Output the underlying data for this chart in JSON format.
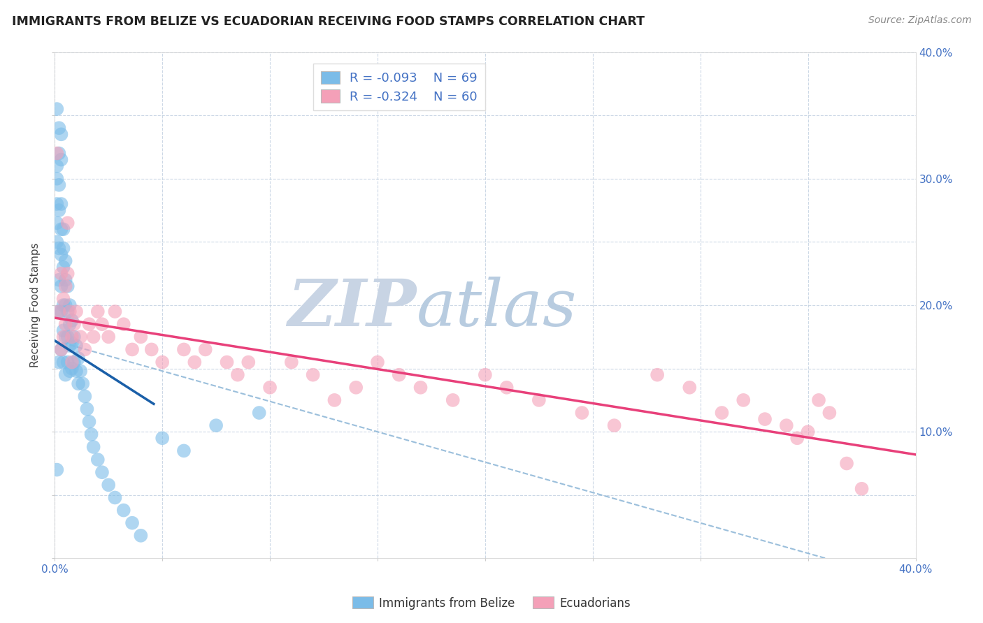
{
  "title": "IMMIGRANTS FROM BELIZE VS ECUADORIAN RECEIVING FOOD STAMPS CORRELATION CHART",
  "source": "Source: ZipAtlas.com",
  "ylabel": "Receiving Food Stamps",
  "xlim": [
    0.0,
    0.4
  ],
  "ylim": [
    0.0,
    0.4
  ],
  "right_ytick_positions": [
    0.1,
    0.2,
    0.3,
    0.4
  ],
  "right_ytick_labels": [
    "10.0%",
    "20.0%",
    "30.0%",
    "40.0%"
  ],
  "legend_R_belize": "R = -0.093",
  "legend_N_belize": "N = 69",
  "legend_R_ecuador": "R = -0.324",
  "legend_N_ecuador": "N = 60",
  "color_belize": "#7bbce8",
  "color_ecuador": "#f4a0b8",
  "color_belize_line": "#1a5fa8",
  "color_ecuador_line": "#e8407a",
  "color_dashed_line": "#90b8d8",
  "watermark_zip": "ZIP",
  "watermark_atlas": "atlas",
  "watermark_color_zip": "#c8d4e4",
  "watermark_color_atlas": "#b8cce0",
  "belize_x": [
    0.001,
    0.001,
    0.001,
    0.001,
    0.001,
    0.001,
    0.001,
    0.002,
    0.002,
    0.002,
    0.002,
    0.002,
    0.002,
    0.002,
    0.002,
    0.003,
    0.003,
    0.003,
    0.003,
    0.003,
    0.003,
    0.003,
    0.003,
    0.004,
    0.004,
    0.004,
    0.004,
    0.004,
    0.004,
    0.005,
    0.005,
    0.005,
    0.005,
    0.005,
    0.006,
    0.006,
    0.006,
    0.006,
    0.007,
    0.007,
    0.007,
    0.007,
    0.008,
    0.008,
    0.008,
    0.009,
    0.009,
    0.01,
    0.01,
    0.011,
    0.011,
    0.012,
    0.013,
    0.014,
    0.015,
    0.016,
    0.017,
    0.018,
    0.02,
    0.022,
    0.025,
    0.028,
    0.032,
    0.036,
    0.04,
    0.05,
    0.06,
    0.075,
    0.095
  ],
  "belize_y": [
    0.355,
    0.31,
    0.3,
    0.28,
    0.265,
    0.25,
    0.07,
    0.34,
    0.32,
    0.295,
    0.275,
    0.245,
    0.22,
    0.195,
    0.155,
    0.335,
    0.315,
    0.28,
    0.26,
    0.24,
    0.215,
    0.195,
    0.165,
    0.26,
    0.245,
    0.23,
    0.2,
    0.18,
    0.155,
    0.235,
    0.22,
    0.2,
    0.175,
    0.145,
    0.215,
    0.195,
    0.175,
    0.155,
    0.2,
    0.185,
    0.168,
    0.148,
    0.188,
    0.17,
    0.15,
    0.175,
    0.155,
    0.168,
    0.148,
    0.158,
    0.138,
    0.148,
    0.138,
    0.128,
    0.118,
    0.108,
    0.098,
    0.088,
    0.078,
    0.068,
    0.058,
    0.048,
    0.038,
    0.028,
    0.018,
    0.095,
    0.085,
    0.105,
    0.115
  ],
  "ecuador_x": [
    0.001,
    0.002,
    0.003,
    0.003,
    0.004,
    0.004,
    0.005,
    0.005,
    0.006,
    0.006,
    0.007,
    0.008,
    0.008,
    0.009,
    0.01,
    0.012,
    0.014,
    0.016,
    0.018,
    0.02,
    0.022,
    0.025,
    0.028,
    0.032,
    0.036,
    0.04,
    0.045,
    0.05,
    0.06,
    0.065,
    0.07,
    0.08,
    0.085,
    0.09,
    0.1,
    0.11,
    0.12,
    0.13,
    0.14,
    0.15,
    0.16,
    0.17,
    0.185,
    0.2,
    0.21,
    0.225,
    0.245,
    0.26,
    0.28,
    0.295,
    0.31,
    0.32,
    0.33,
    0.34,
    0.345,
    0.35,
    0.355,
    0.36,
    0.368,
    0.375
  ],
  "ecuador_y": [
    0.32,
    0.195,
    0.225,
    0.165,
    0.205,
    0.175,
    0.215,
    0.185,
    0.265,
    0.225,
    0.195,
    0.175,
    0.155,
    0.185,
    0.195,
    0.175,
    0.165,
    0.185,
    0.175,
    0.195,
    0.185,
    0.175,
    0.195,
    0.185,
    0.165,
    0.175,
    0.165,
    0.155,
    0.165,
    0.155,
    0.165,
    0.155,
    0.145,
    0.155,
    0.135,
    0.155,
    0.145,
    0.125,
    0.135,
    0.155,
    0.145,
    0.135,
    0.125,
    0.145,
    0.135,
    0.125,
    0.115,
    0.105,
    0.145,
    0.135,
    0.115,
    0.125,
    0.11,
    0.105,
    0.095,
    0.1,
    0.125,
    0.115,
    0.075,
    0.055
  ],
  "belize_line_x": [
    0.0,
    0.046
  ],
  "belize_line_y": [
    0.172,
    0.122
  ],
  "ecuador_line_x": [
    0.0,
    0.4
  ],
  "ecuador_line_y": [
    0.19,
    0.082
  ],
  "dashed_line_x": [
    0.0,
    0.4
  ],
  "dashed_line_y": [
    0.172,
    -0.02
  ]
}
